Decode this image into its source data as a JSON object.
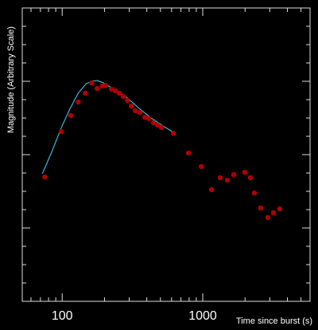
{
  "chart_data": {
    "type": "scatter",
    "x_label": "Time since burst (s)",
    "y_label": "Magnitude (Arbitrary Scale)",
    "x_log": true,
    "xlim": [
      52,
      5800
    ],
    "ylim": [
      0,
      16
    ],
    "xticks": [
      100,
      1000
    ],
    "xticks_minor": [
      60,
      70,
      80,
      90,
      200,
      300,
      400,
      500,
      600,
      700,
      800,
      900,
      2000,
      3000,
      4000,
      5000
    ],
    "yticks": [
      4,
      8,
      12
    ],
    "yticks_minor": [
      1,
      2,
      3,
      5,
      6,
      7,
      9,
      10,
      11,
      13,
      14,
      15
    ],
    "series": [
      {
        "style": "points",
        "color": "#b00000",
        "x": [
          75.2,
          98.7,
          115,
          130,
          146,
          162,
          177,
          192,
          204,
          224,
          239,
          255,
          272,
          291,
          310,
          331,
          358,
          387,
          413,
          446,
          476,
          508,
          618,
          791,
          975,
          1154,
          1331,
          1496,
          1661,
          1991,
          2181,
          2328,
          2584,
          2904,
          3183,
          3532
        ],
        "values": [
          6.78,
          9.26,
          10.13,
          10.87,
          11.35,
          11.91,
          11.61,
          11.74,
          11.78,
          11.57,
          11.48,
          11.35,
          11.17,
          10.96,
          10.65,
          10.39,
          10.3,
          10.04,
          9.96,
          9.74,
          9.61,
          9.48,
          9.17,
          8.09,
          7.35,
          6.09,
          6.74,
          6.61,
          6.91,
          7.04,
          6.74,
          5.91,
          5.09,
          4.57,
          4.83,
          5.04
        ]
      },
      {
        "style": "line",
        "color": "#3fb3d4",
        "x": [
          72.3,
          84.5,
          98.7,
          113.9,
          130,
          148,
          164,
          178,
          197,
          239,
          291,
          353,
          429,
          520,
          618
        ],
        "values": [
          6.96,
          8.17,
          9.48,
          10.52,
          11.35,
          11.87,
          12.02,
          12.04,
          11.91,
          11.52,
          11.09,
          10.52,
          10.0,
          9.57,
          9.22
        ]
      }
    ]
  }
}
